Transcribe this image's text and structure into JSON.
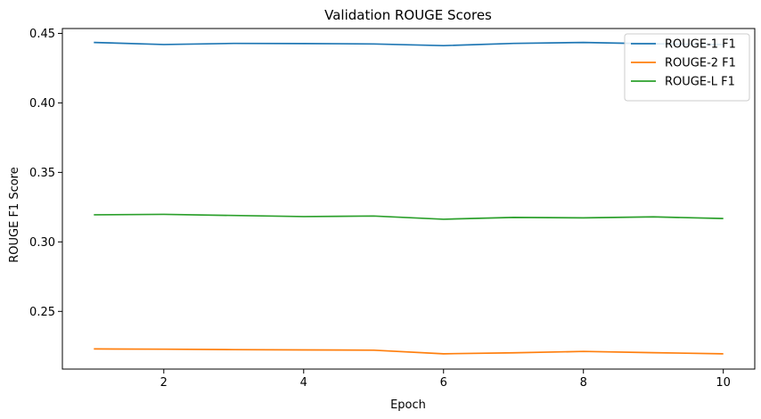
{
  "chart_data": {
    "type": "line",
    "title": "Validation ROUGE Scores",
    "xlabel": "Epoch",
    "ylabel": "ROUGE F1 Score",
    "x": [
      1,
      2,
      3,
      4,
      5,
      6,
      7,
      8,
      9,
      10
    ],
    "xlim": [
      0.55,
      10.45
    ],
    "ylim": [
      0.2085,
      0.4535
    ],
    "xticks": [
      2,
      4,
      6,
      8,
      10
    ],
    "yticks": [
      0.25,
      0.3,
      0.35,
      0.4,
      0.45
    ],
    "ytick_labels": [
      "0.25",
      "0.30",
      "0.35",
      "0.40",
      "0.45"
    ],
    "grid": false,
    "legend_position": "top-right",
    "series": [
      {
        "name": "ROUGE-1 F1",
        "color": "#1f77b4",
        "values": [
          0.4435,
          0.442,
          0.4428,
          0.4427,
          0.4424,
          0.4412,
          0.4428,
          0.4435,
          0.4425,
          0.442
        ]
      },
      {
        "name": "ROUGE-2 F1",
        "color": "#ff7f0e",
        "values": [
          0.223,
          0.2228,
          0.2225,
          0.2223,
          0.2221,
          0.2195,
          0.2202,
          0.2212,
          0.2203,
          0.2195
        ]
      },
      {
        "name": "ROUGE-L F1",
        "color": "#2ca02c",
        "values": [
          0.3195,
          0.3198,
          0.319,
          0.3182,
          0.3186,
          0.3163,
          0.3176,
          0.3173,
          0.318,
          0.3168
        ]
      }
    ]
  }
}
